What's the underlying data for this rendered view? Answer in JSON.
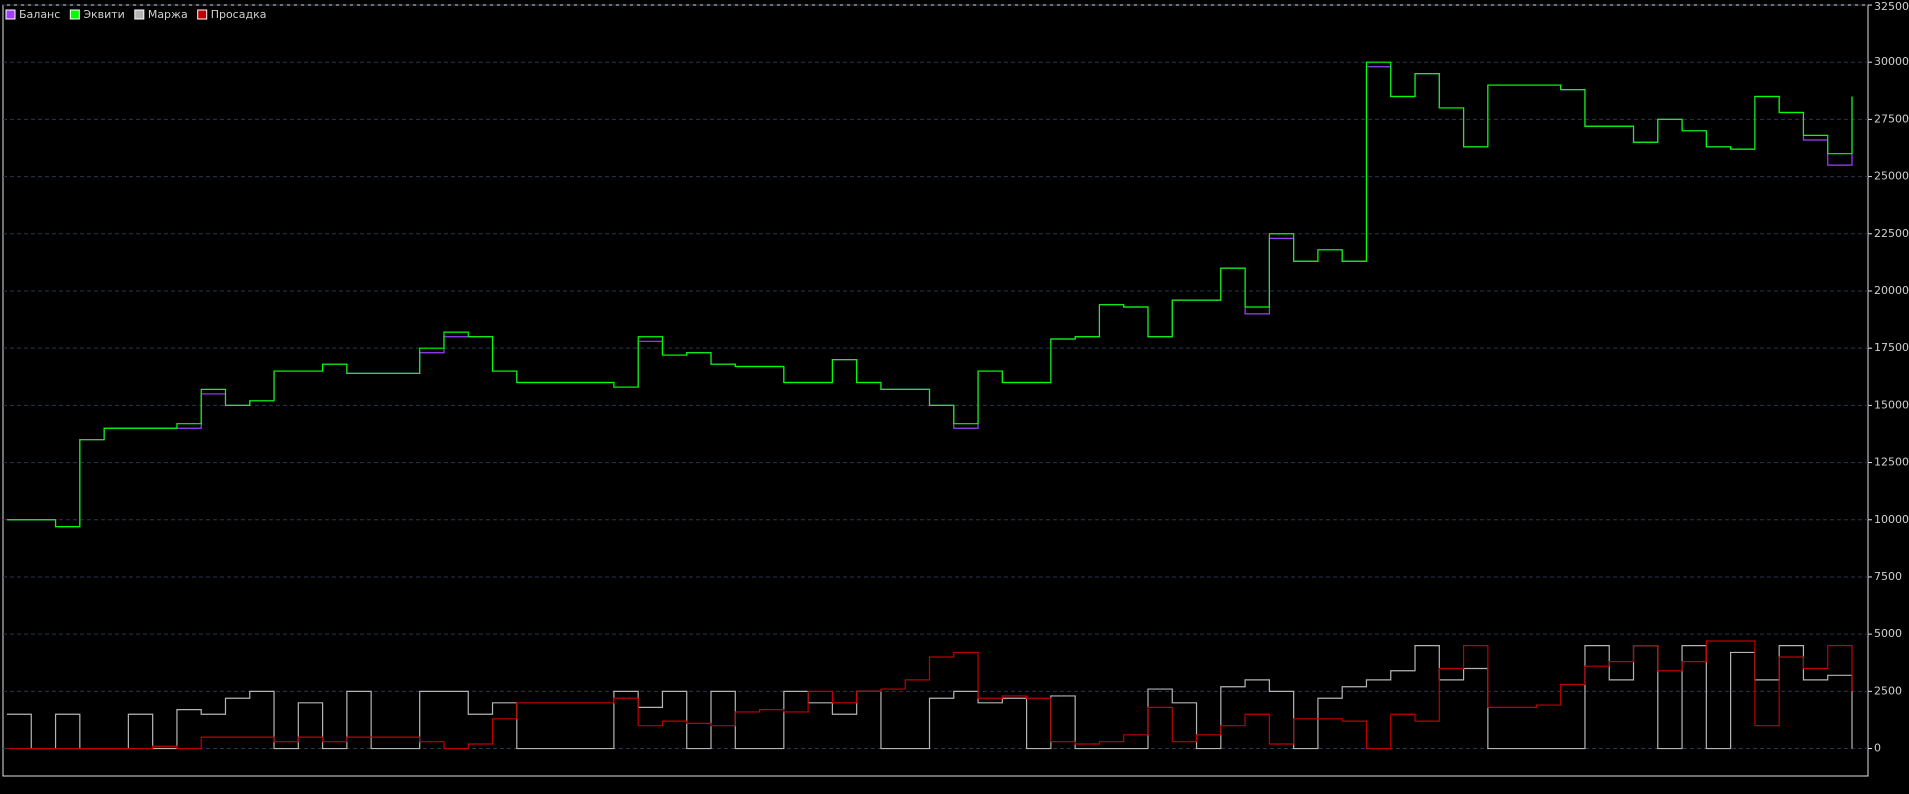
{
  "chart_data": {
    "type": "line",
    "ylim": [
      -1200,
      32500
    ],
    "yticks": [
      0,
      2500,
      5000,
      7500,
      10000,
      12500,
      15000,
      17500,
      20000,
      22500,
      25000,
      27500,
      30000,
      32500
    ],
    "grid": true,
    "legend": "top-left",
    "series": [
      {
        "name": "Баланс",
        "color": "#a040ff",
        "values": [
          10000,
          10000,
          9700,
          13500,
          14000,
          14000,
          14000,
          14000,
          15500,
          15000,
          15200,
          16500,
          16500,
          16800,
          16400,
          16400,
          16400,
          17300,
          18000,
          18000,
          16500,
          16000,
          16000,
          16000,
          16000,
          15800,
          17800,
          17200,
          17300,
          16800,
          16700,
          16700,
          16000,
          16000,
          17000,
          16000,
          15700,
          15700,
          15000,
          14000,
          16500,
          16000,
          16000,
          17900,
          18000,
          19400,
          19300,
          18000,
          19600,
          19600,
          21000,
          19000,
          22300,
          21300,
          21800,
          21300,
          29800,
          28500,
          29500,
          28000,
          26300,
          29000,
          29000,
          29000,
          28800,
          27200,
          27200,
          26500,
          27500,
          27000,
          26300,
          26200,
          28500,
          27800,
          26600,
          25500,
          28500
        ]
      },
      {
        "name": "Эквити",
        "color": "#00ff00",
        "values": [
          10000,
          10000,
          9700,
          13500,
          14000,
          14000,
          14000,
          14200,
          15700,
          15000,
          15200,
          16500,
          16500,
          16800,
          16400,
          16400,
          16400,
          17500,
          18200,
          18000,
          16500,
          16000,
          16000,
          16000,
          16000,
          15800,
          18000,
          17200,
          17300,
          16800,
          16700,
          16700,
          16000,
          16000,
          17000,
          16000,
          15700,
          15700,
          15000,
          14200,
          16500,
          16000,
          16000,
          17900,
          18000,
          19400,
          19300,
          18000,
          19600,
          19600,
          21000,
          19300,
          22500,
          21300,
          21800,
          21300,
          30000,
          28500,
          29500,
          28000,
          26300,
          29000,
          29000,
          29000,
          28800,
          27200,
          27200,
          26500,
          27500,
          27000,
          26300,
          26200,
          28500,
          27800,
          26800,
          26000,
          28500
        ]
      },
      {
        "name": "Маржа",
        "color": "#b4b4b4",
        "values": [
          1500,
          0,
          1500,
          0,
          0,
          1500,
          0,
          1700,
          1500,
          2200,
          2500,
          0,
          2000,
          0,
          2500,
          0,
          0,
          2500,
          2500,
          1500,
          2000,
          0,
          0,
          0,
          0,
          2500,
          1800,
          2500,
          0,
          2500,
          0,
          0,
          2500,
          2000,
          1500,
          2500,
          0,
          0,
          2200,
          2500,
          2000,
          2200,
          0,
          2300,
          0,
          0,
          0,
          2600,
          2000,
          0,
          2700,
          3000,
          2500,
          0,
          2200,
          2700,
          3000,
          3400,
          4500,
          3000,
          3500,
          0,
          0,
          0,
          0,
          4500,
          3000,
          4500,
          0,
          4500,
          0,
          4200,
          3000,
          4500,
          3000,
          3200,
          0
        ]
      },
      {
        "name": "Просадка",
        "color": "#c00000",
        "values": [
          0,
          0,
          0,
          0,
          0,
          0,
          100,
          0,
          500,
          500,
          500,
          300,
          500,
          300,
          500,
          500,
          500,
          300,
          0,
          200,
          1300,
          2000,
          2000,
          2000,
          2000,
          2200,
          1000,
          1200,
          1100,
          1000,
          1600,
          1700,
          1600,
          2500,
          2000,
          2500,
          2600,
          3000,
          4000,
          4200,
          2200,
          2300,
          2200,
          300,
          200,
          300,
          600,
          1800,
          300,
          600,
          1000,
          1500,
          200,
          1300,
          1300,
          1200,
          0,
          1500,
          1200,
          3500,
          4500,
          1800,
          1800,
          1900,
          2800,
          3600,
          3800,
          4500,
          3400,
          3800,
          4700,
          4700,
          1000,
          4000,
          3500,
          4500,
          2500
        ]
      }
    ]
  }
}
